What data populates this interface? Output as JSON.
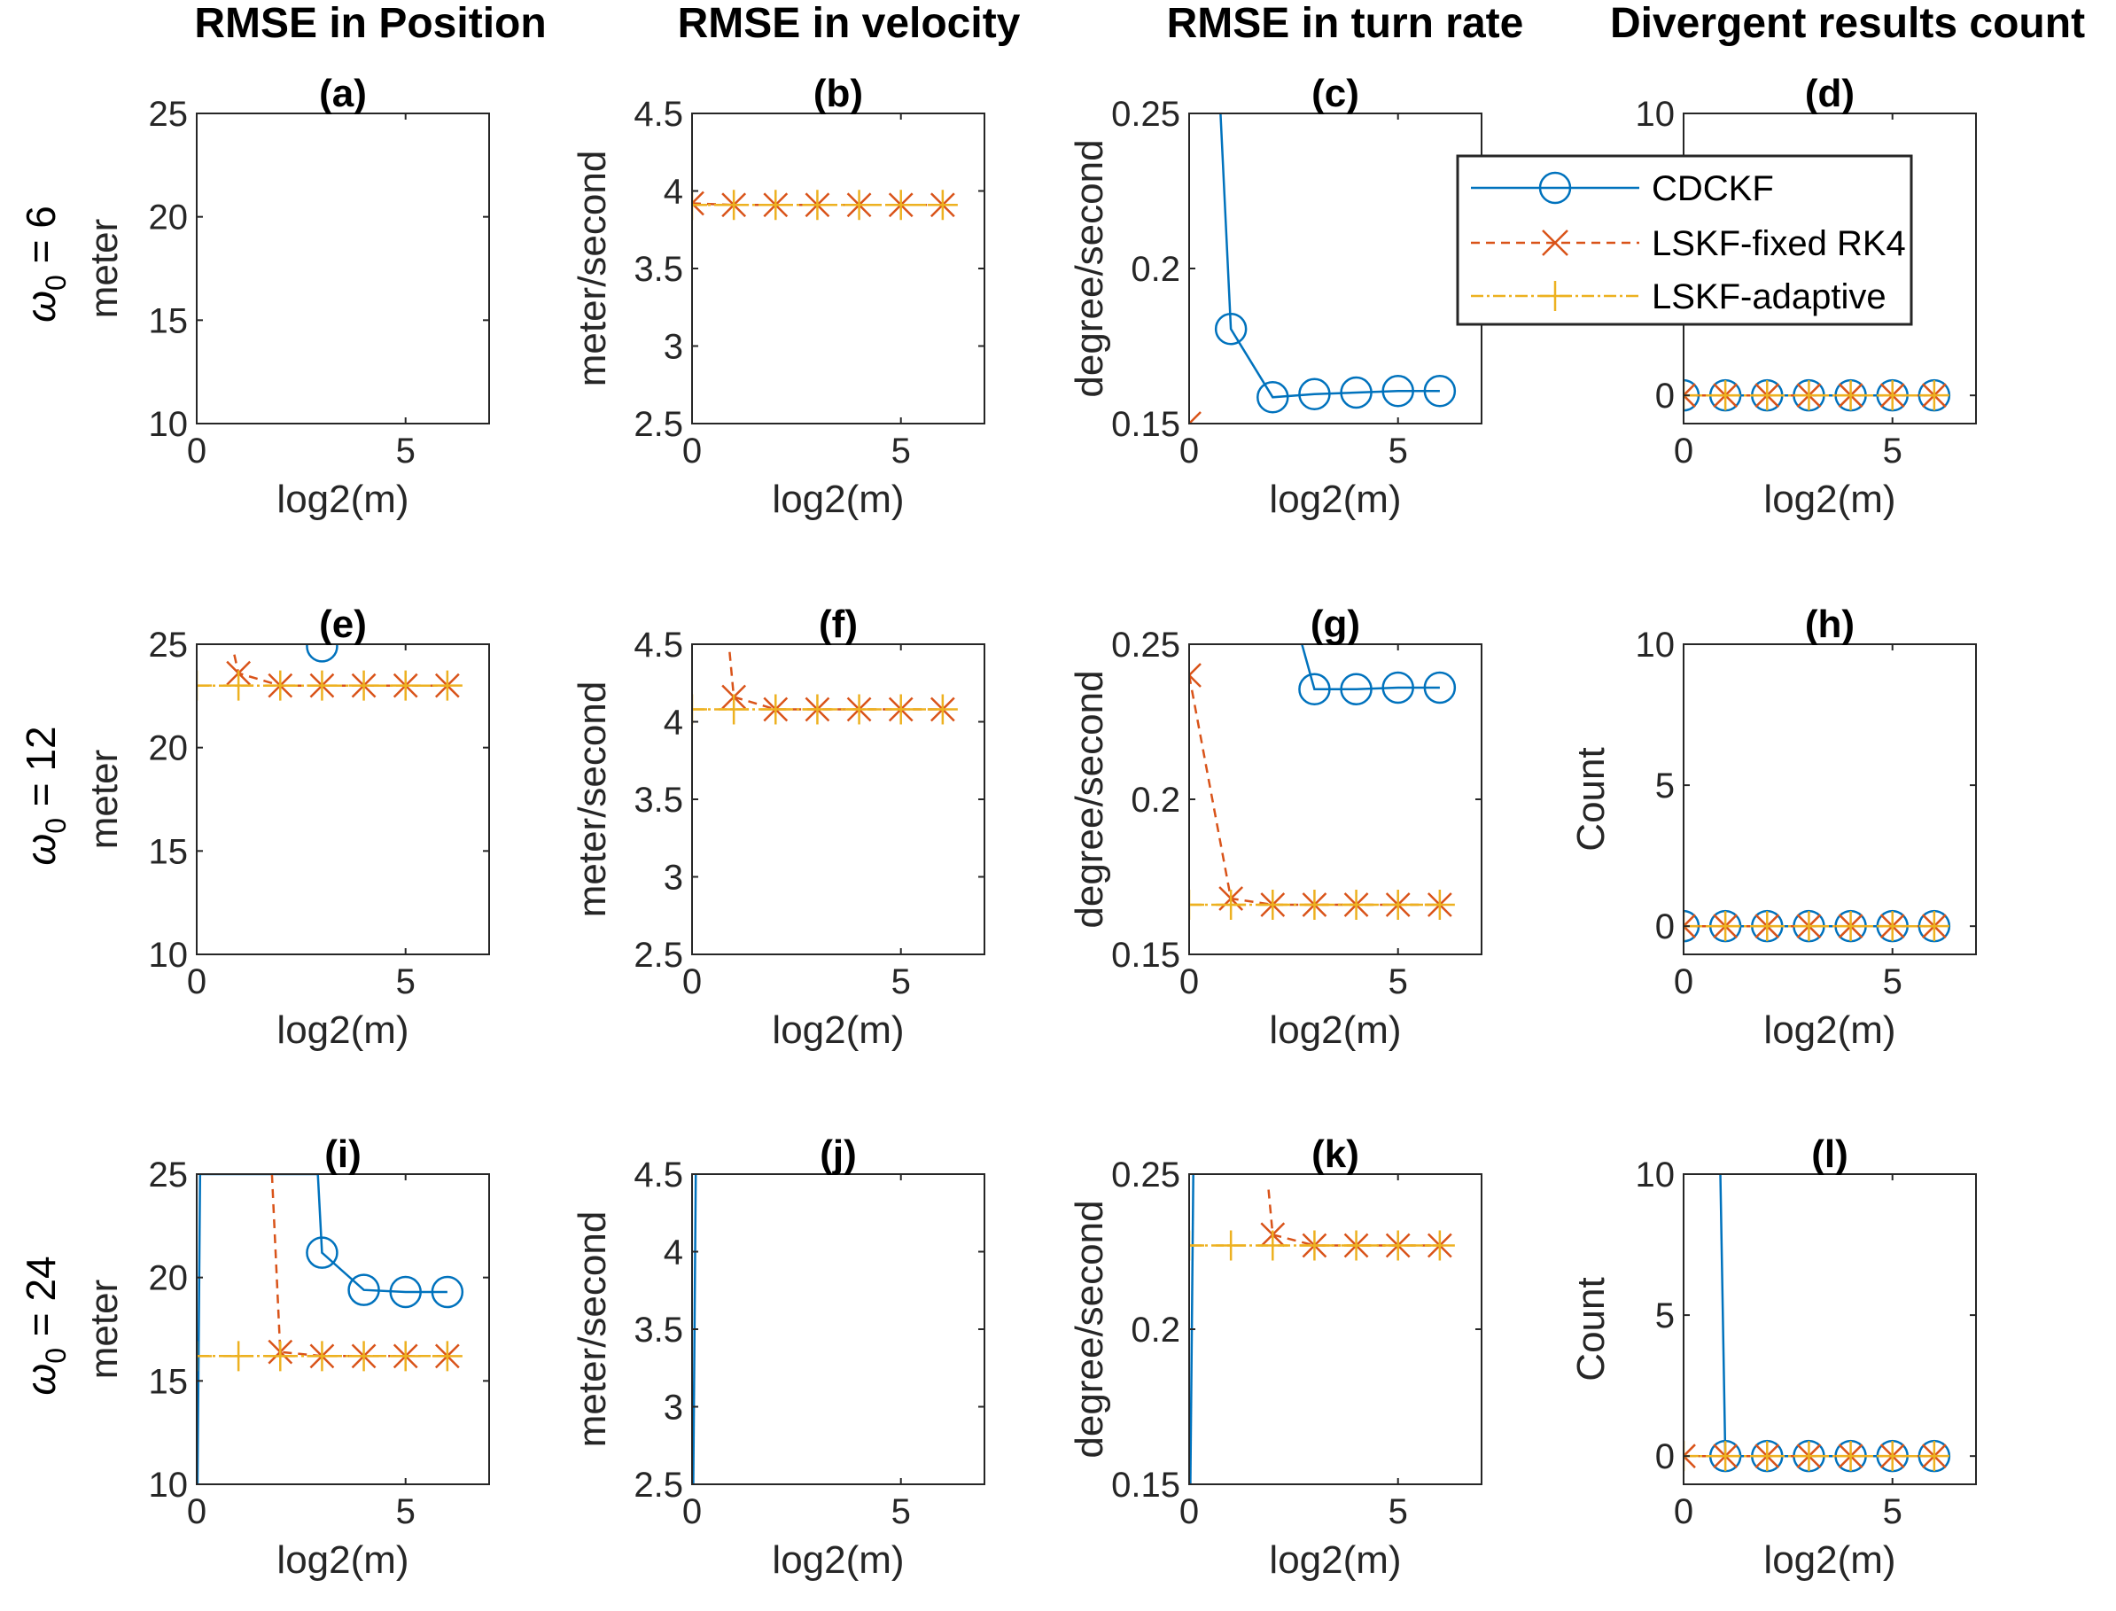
{
  "figure": {
    "column_titles": [
      "RMSE in Position",
      "RMSE in velocity",
      "RMSE in turn rate",
      "Divergent results count"
    ],
    "row_labels": [
      {
        "greek": "ω",
        "sub": "0",
        "rest": " = 6"
      },
      {
        "greek": "ω",
        "sub": "0",
        "rest": " = 12"
      },
      {
        "greek": "ω",
        "sub": "0",
        "rest": " = 24"
      }
    ],
    "legend": {
      "placement": "over panel (c) extending into panel (d)",
      "entries": [
        "CDCKF",
        "LSKF-fixed RK4",
        "LSKF-adaptive"
      ]
    },
    "colors": {
      "CDCKF": "#0072BD",
      "LSKF-fixed RK4": "#D95319",
      "LSKF-adaptive": "#EDB120"
    }
  },
  "chart_data": [
    {
      "id": "a",
      "type": "line",
      "title": "(a)",
      "xlabel": "log2(m)",
      "ylabel": "meter",
      "xlim": [
        0,
        7
      ],
      "ylim": [
        10,
        25
      ],
      "xticks": [
        0,
        5
      ],
      "yticks": [
        10,
        15,
        20,
        25
      ],
      "series": [
        {
          "name": "CDCKF",
          "x": [],
          "y": []
        },
        {
          "name": "LSKF-fixed RK4",
          "x": [],
          "y": []
        },
        {
          "name": "LSKF-adaptive",
          "x": [],
          "y": []
        }
      ]
    },
    {
      "id": "b",
      "type": "line",
      "title": "(b)",
      "xlabel": "log2(m)",
      "ylabel": "meter/second",
      "xlim": [
        0,
        7
      ],
      "ylim": [
        2.5,
        4.5
      ],
      "xticks": [
        0,
        5
      ],
      "yticks": [
        2.5,
        3,
        3.5,
        4,
        4.5
      ],
      "series": [
        {
          "name": "CDCKF",
          "x": [],
          "y": []
        },
        {
          "name": "LSKF-fixed RK4",
          "x": [
            0,
            1,
            2,
            3,
            4,
            5,
            6
          ],
          "y": [
            3.92,
            3.91,
            3.91,
            3.91,
            3.91,
            3.91,
            3.91
          ]
        },
        {
          "name": "LSKF-adaptive",
          "x": [
            0,
            1,
            2,
            3,
            4,
            5,
            6
          ],
          "y": [
            3.91,
            3.91,
            3.91,
            3.91,
            3.91,
            3.91,
            3.91
          ]
        }
      ]
    },
    {
      "id": "c",
      "type": "line",
      "title": "(c)",
      "xlabel": "log2(m)",
      "ylabel": "degree/second",
      "xlim": [
        0,
        7
      ],
      "ylim": [
        0.15,
        0.25
      ],
      "xticks": [
        0,
        5
      ],
      "yticks": [
        0.15,
        0.2,
        0.25
      ],
      "series": [
        {
          "name": "CDCKF",
          "x": [
            0.75,
            1,
            2,
            3,
            4,
            5,
            6
          ],
          "y": [
            0.25,
            0.1805,
            0.1585,
            0.1595,
            0.16,
            0.1605,
            0.1605
          ],
          "markers_from": 1
        },
        {
          "name": "LSKF-fixed RK4",
          "x": [
            0
          ],
          "y": [
            0.15
          ]
        },
        {
          "name": "LSKF-adaptive",
          "x": [],
          "y": []
        }
      ]
    },
    {
      "id": "d",
      "type": "line",
      "title": "(d)",
      "xlabel": "log2(m)",
      "ylabel": "",
      "xlim": [
        0,
        7
      ],
      "ylim": [
        -1,
        10
      ],
      "xticks": [
        0,
        5
      ],
      "yticks": [
        0,
        10
      ],
      "series": [
        {
          "name": "CDCKF",
          "x": [
            0,
            1,
            2,
            3,
            4,
            5,
            6
          ],
          "y": [
            0,
            0,
            0,
            0,
            0,
            0,
            0
          ]
        },
        {
          "name": "LSKF-fixed RK4",
          "x": [
            0,
            1,
            2,
            3,
            4,
            5,
            6
          ],
          "y": [
            0,
            0,
            0,
            0,
            0,
            0,
            0
          ]
        },
        {
          "name": "LSKF-adaptive",
          "x": [
            0,
            1,
            2,
            3,
            4,
            5,
            6
          ],
          "y": [
            0,
            0,
            0,
            0,
            0,
            0,
            0
          ]
        }
      ]
    },
    {
      "id": "e",
      "type": "line",
      "title": "(e)",
      "xlabel": "log2(m)",
      "ylabel": "meter",
      "xlim": [
        0,
        7
      ],
      "ylim": [
        10,
        25
      ],
      "xticks": [
        0,
        5
      ],
      "yticks": [
        10,
        15,
        20,
        25
      ],
      "series": [
        {
          "name": "CDCKF",
          "x": [
            3
          ],
          "y": [
            24.9
          ]
        },
        {
          "name": "LSKF-fixed RK4",
          "x": [
            0.9,
            1,
            2,
            3,
            4,
            5,
            6
          ],
          "y": [
            24.5,
            23.6,
            23.0,
            23.0,
            23.0,
            23.0,
            23.0
          ],
          "markers_from": 1
        },
        {
          "name": "LSKF-adaptive",
          "x": [
            0,
            1,
            2,
            3,
            4,
            5,
            6
          ],
          "y": [
            23.0,
            23.0,
            23.0,
            23.0,
            23.0,
            23.0,
            23.0
          ]
        }
      ]
    },
    {
      "id": "f",
      "type": "line",
      "title": "(f)",
      "xlabel": "log2(m)",
      "ylabel": "meter/second",
      "xlim": [
        0,
        7
      ],
      "ylim": [
        2.5,
        4.5
      ],
      "xticks": [
        0,
        5
      ],
      "yticks": [
        2.5,
        3,
        3.5,
        4,
        4.5
      ],
      "series": [
        {
          "name": "CDCKF",
          "x": [],
          "y": []
        },
        {
          "name": "LSKF-fixed RK4",
          "x": [
            0.9,
            1,
            2,
            3,
            4,
            5,
            6
          ],
          "y": [
            4.45,
            4.16,
            4.08,
            4.08,
            4.08,
            4.08,
            4.08
          ],
          "markers_from": 1
        },
        {
          "name": "LSKF-adaptive",
          "x": [
            0,
            1,
            2,
            3,
            4,
            5,
            6
          ],
          "y": [
            4.08,
            4.08,
            4.08,
            4.08,
            4.08,
            4.08,
            4.08
          ]
        }
      ]
    },
    {
      "id": "g",
      "type": "line",
      "title": "(g)",
      "xlabel": "log2(m)",
      "ylabel": "degree/second",
      "xlim": [
        0,
        7
      ],
      "ylim": [
        0.15,
        0.25
      ],
      "xticks": [
        0,
        5
      ],
      "yticks": [
        0.15,
        0.2,
        0.25
      ],
      "series": [
        {
          "name": "CDCKF",
          "x": [
            2.7,
            3,
            4,
            5,
            6
          ],
          "y": [
            0.25,
            0.2355,
            0.2355,
            0.236,
            0.236
          ],
          "markers_from": 1
        },
        {
          "name": "LSKF-fixed RK4",
          "x": [
            0,
            1,
            2,
            3,
            4,
            5,
            6
          ],
          "y": [
            0.24,
            0.168,
            0.166,
            0.166,
            0.166,
            0.166,
            0.166
          ]
        },
        {
          "name": "LSKF-adaptive",
          "x": [
            0,
            1,
            2,
            3,
            4,
            5,
            6
          ],
          "y": [
            0.166,
            0.166,
            0.166,
            0.166,
            0.166,
            0.166,
            0.166
          ]
        }
      ]
    },
    {
      "id": "h",
      "type": "line",
      "title": "(h)",
      "xlabel": "log2(m)",
      "ylabel": "Count",
      "xlim": [
        0,
        7
      ],
      "ylim": [
        -1,
        10
      ],
      "xticks": [
        0,
        5
      ],
      "yticks": [
        0,
        5,
        10
      ],
      "series": [
        {
          "name": "CDCKF",
          "x": [
            0,
            1,
            2,
            3,
            4,
            5,
            6
          ],
          "y": [
            0,
            0,
            0,
            0,
            0,
            0,
            0
          ]
        },
        {
          "name": "LSKF-fixed RK4",
          "x": [
            0,
            1,
            2,
            3,
            4,
            5,
            6
          ],
          "y": [
            0,
            0,
            0,
            0,
            0,
            0,
            0
          ]
        },
        {
          "name": "LSKF-adaptive",
          "x": [
            0,
            1,
            2,
            3,
            4,
            5,
            6
          ],
          "y": [
            0,
            0,
            0,
            0,
            0,
            0,
            0
          ]
        }
      ]
    },
    {
      "id": "i",
      "type": "line",
      "title": "(i)",
      "xlabel": "log2(m)",
      "ylabel": "meter",
      "xlim": [
        0,
        7
      ],
      "ylim": [
        10,
        25
      ],
      "xticks": [
        0,
        5
      ],
      "yticks": [
        10,
        15,
        20,
        25
      ],
      "series": [
        {
          "name": "CDCKF",
          "x": [
            0.02,
            0.08,
            2.9,
            3,
            4,
            5,
            6
          ],
          "y": [
            10,
            25,
            25,
            21.2,
            19.4,
            19.3,
            19.3
          ],
          "markers_from": 3
        },
        {
          "name": "LSKF-fixed RK4",
          "x": [
            1.8,
            2,
            3,
            4,
            5,
            6
          ],
          "y": [
            25,
            16.4,
            16.2,
            16.2,
            16.2,
            16.2
          ],
          "markers_from": 1
        },
        {
          "name": "LSKF-adaptive",
          "x": [
            0,
            1,
            2,
            3,
            4,
            5,
            6
          ],
          "y": [
            16.2,
            16.2,
            16.2,
            16.2,
            16.2,
            16.2,
            16.2
          ]
        }
      ]
    },
    {
      "id": "j",
      "type": "line",
      "title": "(j)",
      "xlabel": "log2(m)",
      "ylabel": "meter/second",
      "xlim": [
        0,
        7
      ],
      "ylim": [
        2.5,
        4.5
      ],
      "xticks": [
        0,
        5
      ],
      "yticks": [
        2.5,
        3,
        3.5,
        4,
        4.5
      ],
      "series": [
        {
          "name": "CDCKF",
          "x": [
            0.03,
            0.09
          ],
          "y": [
            2.5,
            4.5
          ],
          "markers_from": 99
        },
        {
          "name": "LSKF-fixed RK4",
          "x": [],
          "y": []
        },
        {
          "name": "LSKF-adaptive",
          "x": [],
          "y": []
        }
      ]
    },
    {
      "id": "k",
      "type": "line",
      "title": "(k)",
      "xlabel": "log2(m)",
      "ylabel": "degree/second",
      "xlim": [
        0,
        7
      ],
      "ylim": [
        0.15,
        0.25
      ],
      "xticks": [
        0,
        5
      ],
      "yticks": [
        0.15,
        0.2,
        0.25
      ],
      "series": [
        {
          "name": "CDCKF",
          "x": [
            0.03,
            0.1
          ],
          "y": [
            0.15,
            0.25
          ],
          "markers_from": 99
        },
        {
          "name": "LSKF-fixed RK4",
          "x": [
            1.9,
            2,
            3,
            4,
            5,
            6
          ],
          "y": [
            0.245,
            0.2305,
            0.227,
            0.227,
            0.227,
            0.227
          ],
          "markers_from": 1
        },
        {
          "name": "LSKF-adaptive",
          "x": [
            0,
            1,
            2,
            3,
            4,
            5,
            6
          ],
          "y": [
            0.227,
            0.227,
            0.227,
            0.227,
            0.227,
            0.227,
            0.227
          ]
        }
      ]
    },
    {
      "id": "l",
      "type": "line",
      "title": "(l)",
      "xlabel": "log2(m)",
      "ylabel": "Count",
      "xlim": [
        0,
        7
      ],
      "ylim": [
        -1,
        10
      ],
      "xticks": [
        0,
        5
      ],
      "yticks": [
        0,
        5,
        10
      ],
      "series": [
        {
          "name": "CDCKF",
          "x": [
            0.88,
            1,
            2,
            3,
            4,
            5,
            6
          ],
          "y": [
            10,
            0,
            0,
            0,
            0,
            0,
            0
          ],
          "markers_from": 1
        },
        {
          "name": "LSKF-fixed RK4",
          "x": [
            0,
            1,
            2,
            3,
            4,
            5,
            6
          ],
          "y": [
            0,
            0,
            0,
            0,
            0,
            0,
            0
          ]
        },
        {
          "name": "LSKF-adaptive",
          "x": [
            0,
            1,
            2,
            3,
            4,
            5,
            6
          ],
          "y": [
            0,
            0,
            0,
            0,
            0,
            0,
            0
          ]
        }
      ]
    }
  ]
}
